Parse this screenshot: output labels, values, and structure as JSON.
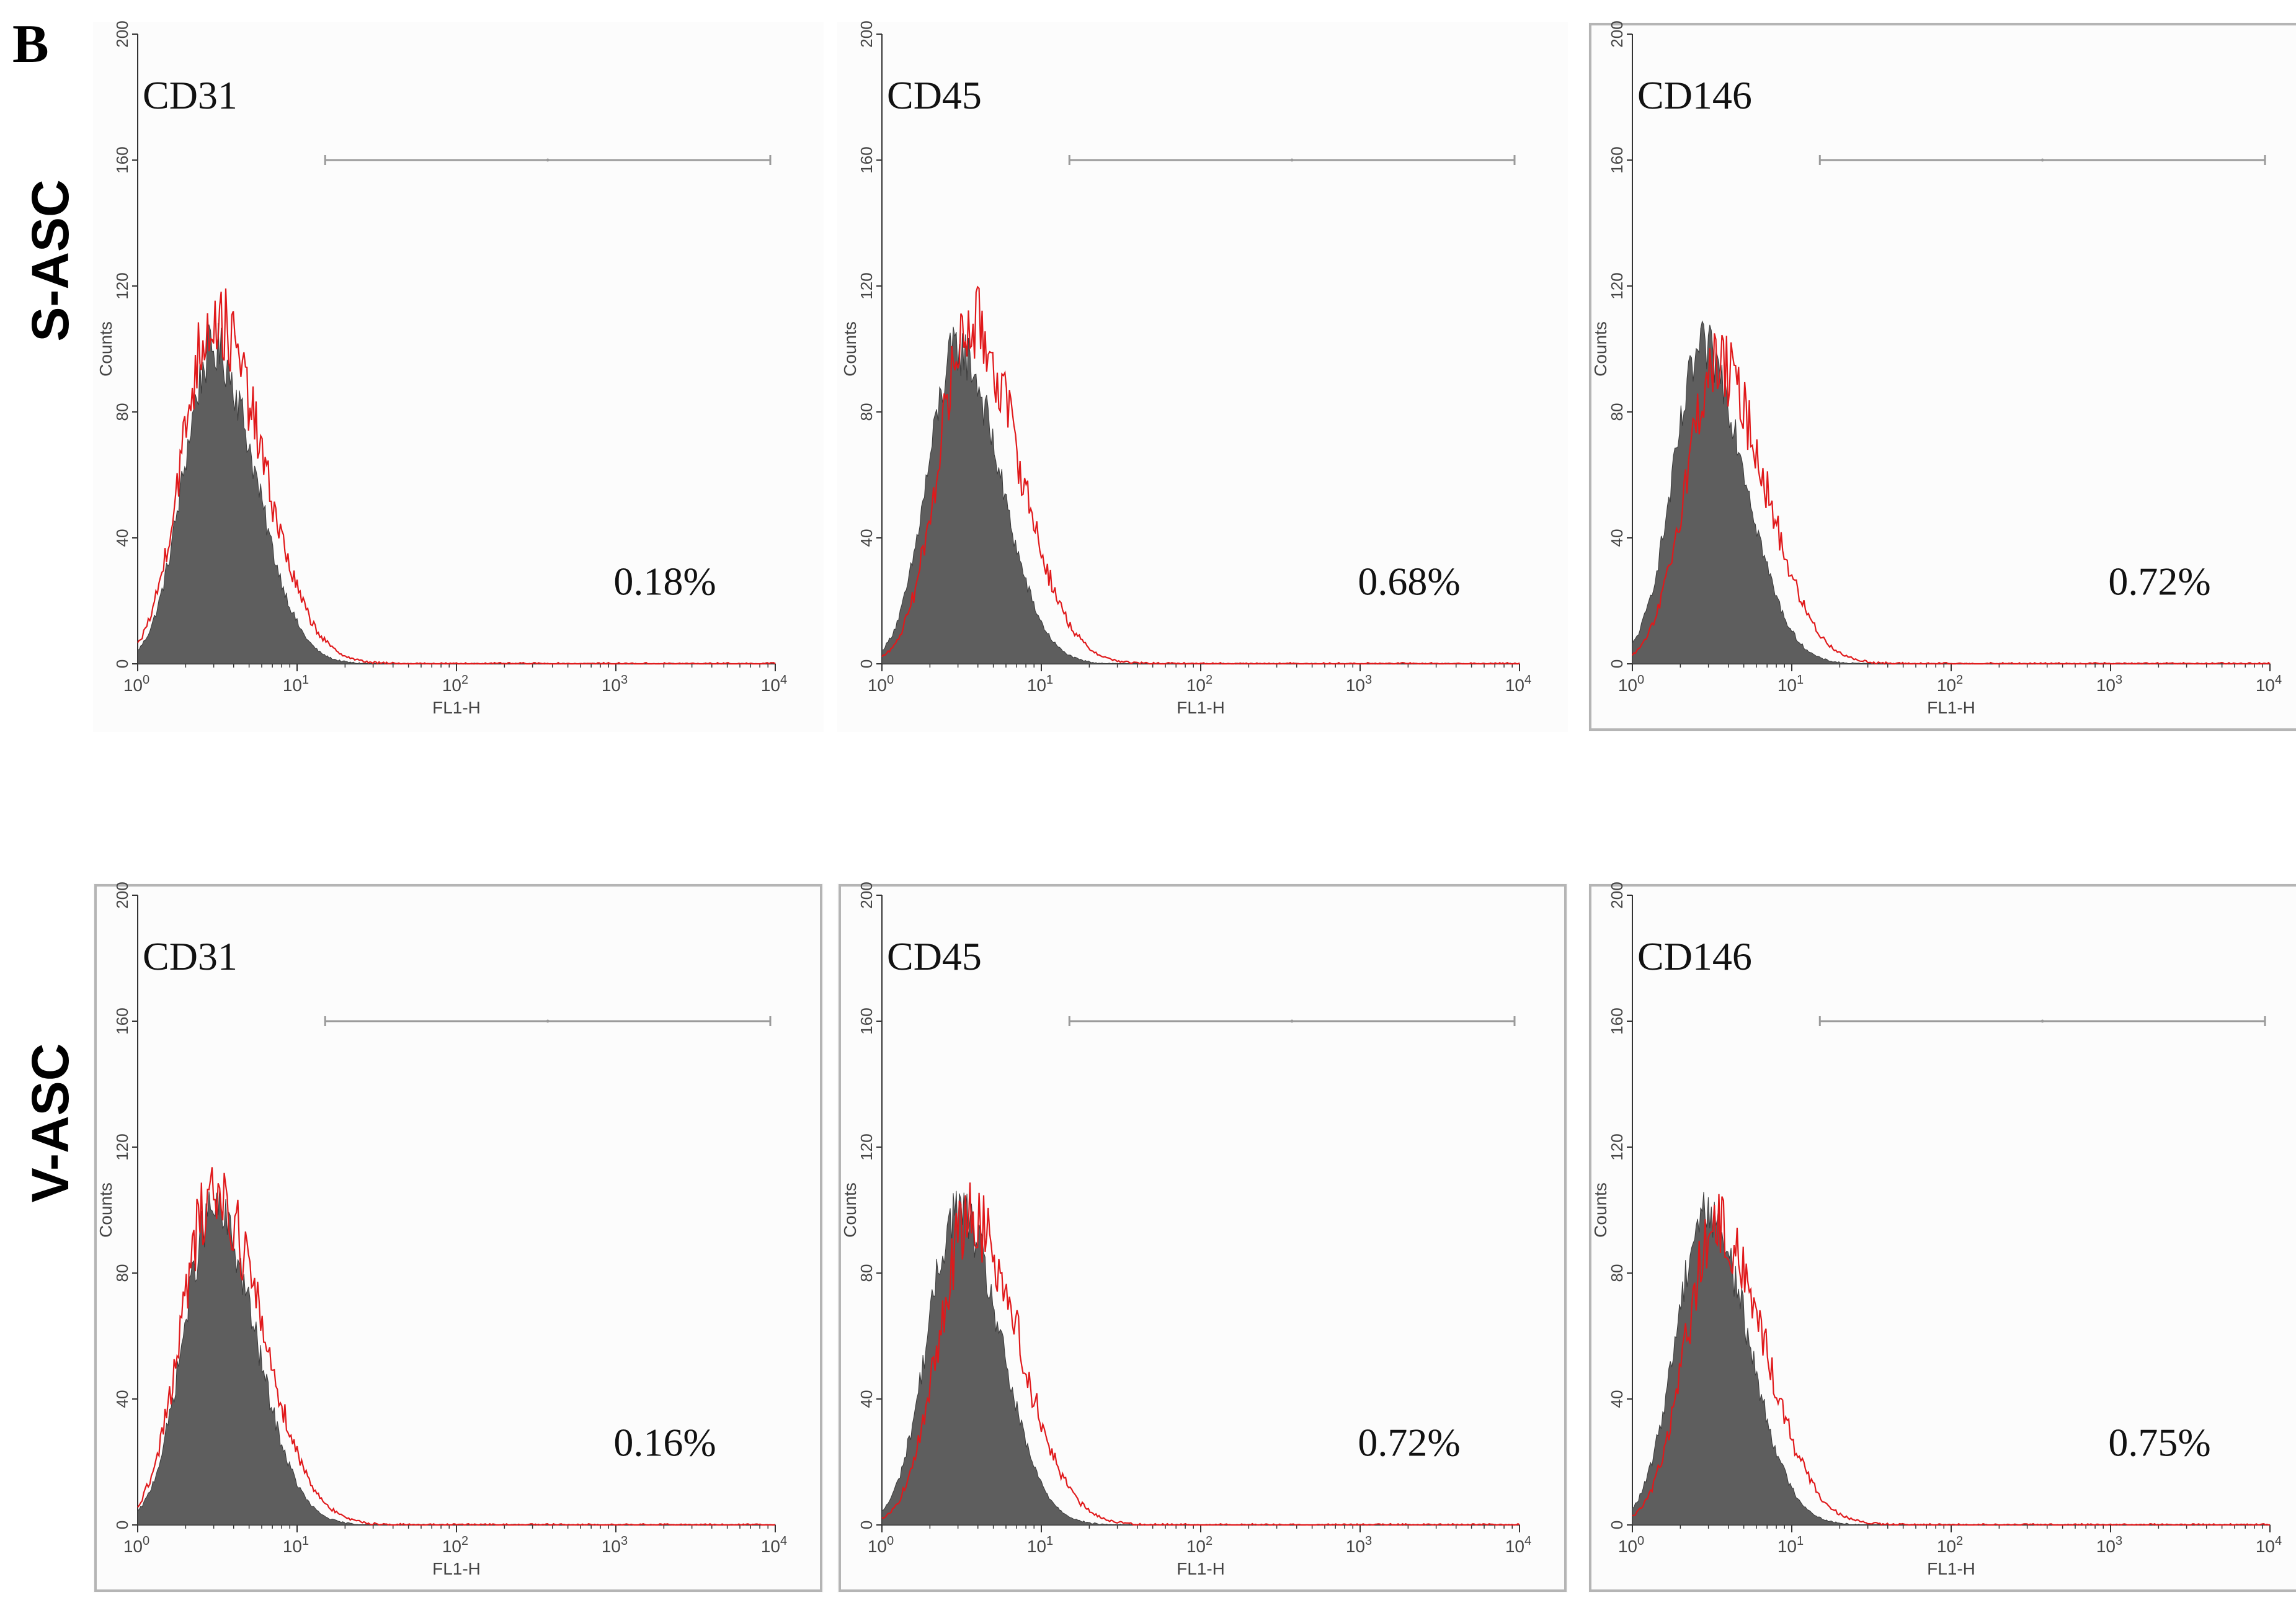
{
  "panel_letter": "B",
  "row_labels": [
    "S-ASC",
    "V-ASC"
  ],
  "colors": {
    "isotype_fill": "#5e5e5e",
    "stained_line": "#e0191b",
    "gate_line": "#9a9a9a",
    "axis": "#333333",
    "frame": "#b5b5b5",
    "plot_bg": "#fcfcfc"
  },
  "chart_data": [
    {
      "type": "area",
      "row": "S-ASC",
      "marker": "CD31",
      "percent_label": "0.18%",
      "xlabel": "FL1-H",
      "ylabel": "Counts",
      "x_scale": "log",
      "x_ticks": [
        "10^0",
        "10^1",
        "10^2",
        "10^3",
        "10^4"
      ],
      "xlim": [
        1,
        10000
      ],
      "ylim": [
        0,
        200
      ],
      "y_ticks": [
        0,
        40,
        80,
        120,
        160,
        200
      ],
      "isotype_peak": {
        "x": 3.0,
        "count": 100
      },
      "stained_peak": {
        "x": 3.0,
        "count": 110
      },
      "marker_gate": [
        15,
        10000
      ],
      "frame": false
    },
    {
      "type": "area",
      "row": "S-ASC",
      "marker": "CD45",
      "percent_label": "0.68%",
      "xlabel": "FL1-H",
      "ylabel": "Counts",
      "x_scale": "log",
      "x_ticks": [
        "10^0",
        "10^1",
        "10^2",
        "10^3",
        "10^4"
      ],
      "xlim": [
        1,
        10000
      ],
      "ylim": [
        0,
        200
      ],
      "y_ticks": [
        0,
        40,
        80,
        120,
        160,
        200
      ],
      "isotype_peak": {
        "x": 3.0,
        "count": 100
      },
      "stained_peak": {
        "x": 3.6,
        "count": 108
      },
      "marker_gate": [
        15,
        10000
      ],
      "frame": false
    },
    {
      "type": "area",
      "row": "S-ASC",
      "marker": "CD146",
      "percent_label": "0.72%",
      "xlabel": "FL1-H",
      "ylabel": "Counts",
      "x_scale": "log",
      "x_ticks": [
        "10^0",
        "10^1",
        "10^2",
        "10^3",
        "10^4"
      ],
      "xlim": [
        1,
        10000
      ],
      "ylim": [
        0,
        200
      ],
      "y_ticks": [
        0,
        40,
        80,
        120,
        160,
        200
      ],
      "isotype_peak": {
        "x": 2.8,
        "count": 100
      },
      "stained_peak": {
        "x": 3.4,
        "count": 95
      },
      "marker_gate": [
        15,
        10000
      ],
      "frame": true
    },
    {
      "type": "area",
      "row": "V-ASC",
      "marker": "CD31",
      "percent_label": "0.16%",
      "xlabel": "FL1-H",
      "ylabel": "Counts",
      "x_scale": "log",
      "x_ticks": [
        "10^0",
        "10^1",
        "10^2",
        "10^3",
        "10^4"
      ],
      "xlim": [
        1,
        10000
      ],
      "ylim": [
        0,
        200
      ],
      "y_ticks": [
        0,
        40,
        80,
        120,
        160,
        200
      ],
      "isotype_peak": {
        "x": 3.0,
        "count": 100
      },
      "stained_peak": {
        "x": 3.0,
        "count": 106
      },
      "marker_gate": [
        15,
        10000
      ],
      "frame": true
    },
    {
      "type": "area",
      "row": "V-ASC",
      "marker": "CD45",
      "percent_label": "0.72%",
      "xlabel": "FL1-H",
      "ylabel": "Counts",
      "x_scale": "log",
      "x_ticks": [
        "10^0",
        "10^1",
        "10^2",
        "10^3",
        "10^4"
      ],
      "xlim": [
        1,
        10000
      ],
      "ylim": [
        0,
        200
      ],
      "y_ticks": [
        0,
        40,
        80,
        120,
        160,
        200
      ],
      "isotype_peak": {
        "x": 3.0,
        "count": 100
      },
      "stained_peak": {
        "x": 3.6,
        "count": 98
      },
      "marker_gate": [
        15,
        10000
      ],
      "frame": true
    },
    {
      "type": "area",
      "row": "V-ASC",
      "marker": "CD146",
      "percent_label": "0.75%",
      "xlabel": "FL1-H",
      "ylabel": "Counts",
      "x_scale": "log",
      "x_ticks": [
        "10^0",
        "10^1",
        "10^2",
        "10^3",
        "10^4"
      ],
      "xlim": [
        1,
        10000
      ],
      "ylim": [
        0,
        200
      ],
      "y_ticks": [
        0,
        40,
        80,
        120,
        160,
        200
      ],
      "isotype_peak": {
        "x": 2.9,
        "count": 100
      },
      "stained_peak": {
        "x": 3.4,
        "count": 94
      },
      "marker_gate": [
        15,
        10000
      ],
      "frame": true
    }
  ]
}
